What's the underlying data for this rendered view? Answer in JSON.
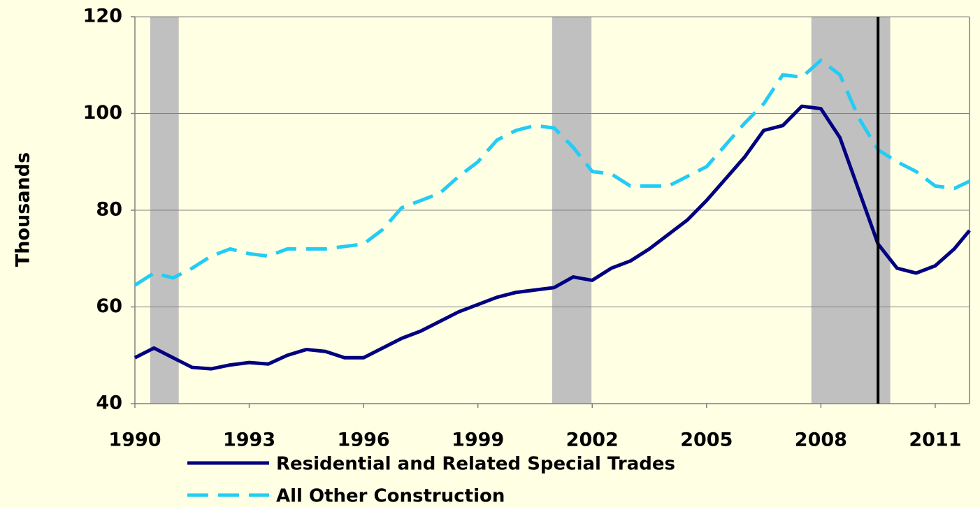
{
  "chart_data": {
    "type": "line",
    "y_label": "Thousands",
    "x": [
      1990,
      1990.5,
      1991,
      1991.5,
      1992,
      1992.5,
      1993,
      1993.5,
      1994,
      1994.5,
      1995,
      1995.5,
      1996,
      1996.5,
      1997,
      1997.5,
      1998,
      1998.5,
      1999,
      1999.5,
      2000,
      2000.5,
      2001,
      2001.5,
      2002,
      2002.5,
      2003,
      2003.5,
      2004,
      2004.5,
      2005,
      2005.5,
      2006,
      2006.5,
      2007,
      2007.5,
      2008,
      2008.5,
      2009,
      2009.5,
      2010,
      2010.5,
      2011,
      2011.5,
      2011.9
    ],
    "series": [
      {
        "name": "Residential and Related Special Trades",
        "color": "#000080",
        "dash": false,
        "values": [
          49.5,
          51.5,
          49.5,
          47.5,
          47.2,
          48,
          48.5,
          48.2,
          50,
          51.2,
          50.8,
          49.5,
          49.5,
          51.5,
          53.5,
          55,
          57,
          59,
          60.5,
          62,
          63,
          63.5,
          64,
          66.2,
          65.5,
          68,
          69.5,
          72,
          75,
          78,
          82,
          86.5,
          91,
          96.5,
          97.5,
          101.5,
          101,
          95,
          84,
          73,
          68,
          67,
          68.5,
          72,
          75.8
        ]
      },
      {
        "name": "All Other Construction",
        "color": "#22CCF5",
        "dash": true,
        "values": [
          64.5,
          67,
          66,
          68,
          70.5,
          72,
          71,
          70.5,
          72,
          72,
          72,
          72.5,
          73,
          76,
          80.5,
          82,
          83.5,
          87,
          90,
          94.5,
          96.5,
          97.5,
          97,
          93,
          88,
          87.5,
          85,
          85,
          85,
          87,
          89,
          93.5,
          98,
          102,
          108,
          107.5,
          111,
          108,
          99,
          92.5,
          90,
          88,
          85,
          84.5,
          86
        ]
      }
    ],
    "xlim": [
      1990,
      2011.9
    ],
    "xticks": [
      1990,
      1993,
      1996,
      1999,
      2002,
      2005,
      2008,
      2011
    ],
    "ylim": [
      40,
      120
    ],
    "yticks": [
      40,
      60,
      80,
      100,
      120
    ],
    "grid": true,
    "shading": [
      [
        1990.4,
        1991.15
      ],
      [
        2000.95,
        2001.98
      ],
      [
        2007.75,
        2009.82
      ]
    ],
    "shading_color": "#C0C0C0",
    "vline": 2009.5
  }
}
